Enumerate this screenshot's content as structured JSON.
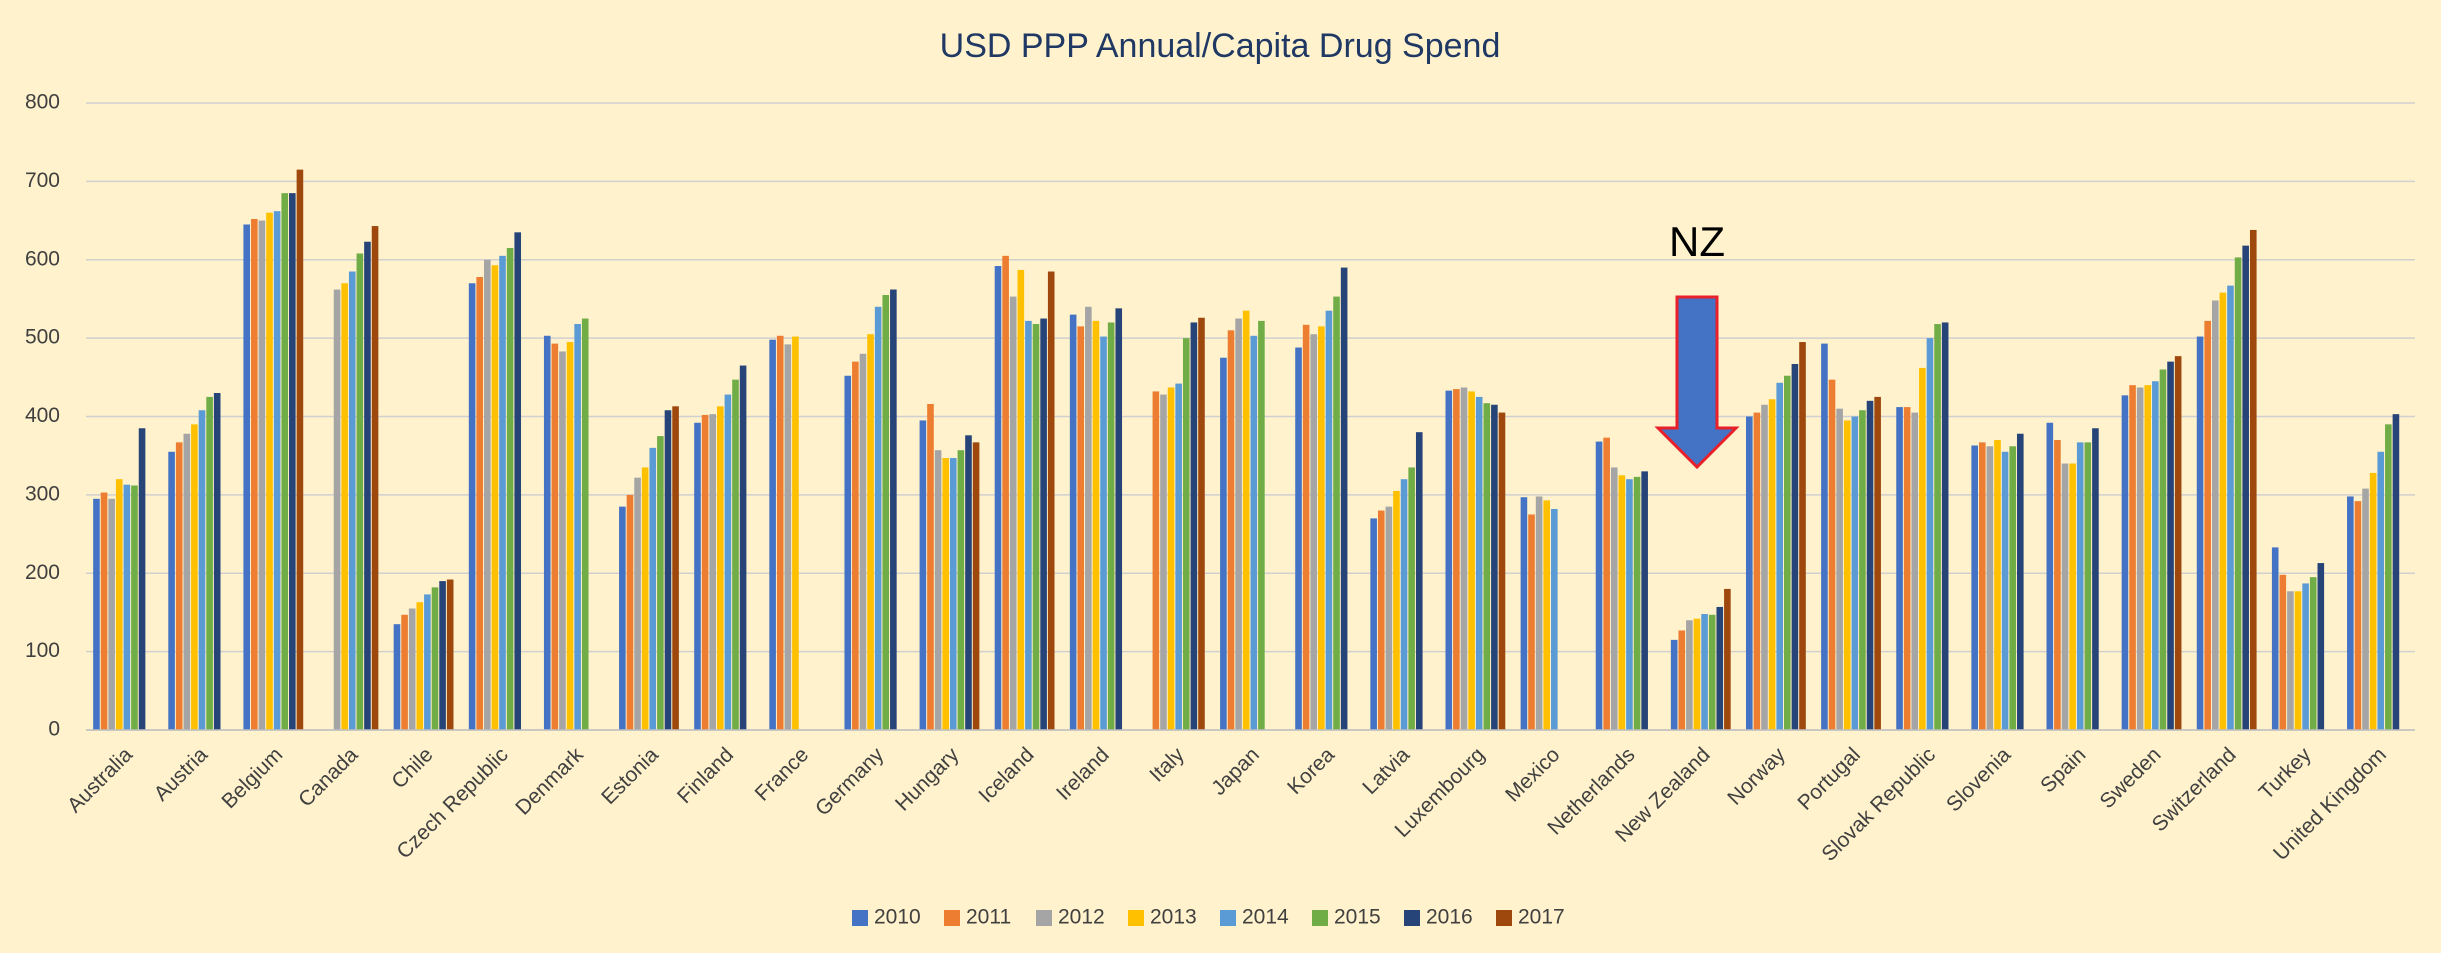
{
  "chart_data": {
    "type": "bar",
    "title": "USD PPP Annual/Capita Drug Spend",
    "categories": [
      "Australia",
      "Austria",
      "Belgium",
      "Canada",
      "Chile",
      "Czech Republic",
      "Denmark",
      "Estonia",
      "Finland",
      "France",
      "Germany",
      "Hungary",
      "Iceland",
      "Ireland",
      "Italy",
      "Japan",
      "Korea",
      "Latvia",
      "Luxembourg",
      "Mexico",
      "Netherlands",
      "New Zealand",
      "Norway",
      "Portugal",
      "Slovak Republic",
      "Slovenia",
      "Spain",
      "Sweden",
      "Switzerland",
      "Turkey",
      "United Kingdom"
    ],
    "series": [
      {
        "name": "2010",
        "color": "#4472c4",
        "values": [
          295,
          355,
          645,
          null,
          135,
          570,
          503,
          285,
          392,
          498,
          452,
          395,
          592,
          530,
          null,
          475,
          488,
          270,
          433,
          297,
          368,
          115,
          400,
          493,
          412,
          363,
          392,
          427,
          502,
          233,
          298
        ]
      },
      {
        "name": "2011",
        "color": "#ed7d31",
        "values": [
          303,
          367,
          652,
          null,
          147,
          578,
          493,
          300,
          402,
          503,
          470,
          416,
          605,
          515,
          432,
          510,
          517,
          280,
          435,
          275,
          373,
          127,
          405,
          447,
          412,
          367,
          370,
          440,
          522,
          198,
          292
        ]
      },
      {
        "name": "2012",
        "color": "#a5a5a5",
        "values": [
          295,
          378,
          650,
          562,
          155,
          600,
          483,
          322,
          403,
          492,
          480,
          357,
          553,
          540,
          428,
          525,
          505,
          285,
          437,
          298,
          335,
          140,
          415,
          410,
          405,
          362,
          340,
          437,
          548,
          177,
          308
        ]
      },
      {
        "name": "2013",
        "color": "#ffc000",
        "values": [
          320,
          390,
          660,
          570,
          163,
          593,
          495,
          335,
          413,
          502,
          505,
          347,
          587,
          522,
          437,
          535,
          515,
          305,
          432,
          293,
          325,
          142,
          422,
          395,
          462,
          370,
          340,
          440,
          558,
          177,
          328
        ]
      },
      {
        "name": "2014",
        "color": "#5b9bd5",
        "values": [
          313,
          408,
          662,
          585,
          173,
          605,
          518,
          360,
          428,
          null,
          540,
          347,
          522,
          502,
          442,
          503,
          535,
          320,
          425,
          282,
          320,
          148,
          443,
          400,
          500,
          355,
          367,
          445,
          567,
          187,
          355
        ]
      },
      {
        "name": "2015",
        "color": "#70ad47",
        "values": [
          312,
          425,
          685,
          608,
          182,
          615,
          525,
          375,
          447,
          null,
          555,
          357,
          518,
          520,
          500,
          522,
          553,
          335,
          417,
          null,
          323,
          147,
          452,
          408,
          518,
          362,
          367,
          460,
          603,
          195,
          390
        ]
      },
      {
        "name": "2016",
        "color": "#264478",
        "values": [
          385,
          430,
          685,
          623,
          190,
          635,
          null,
          408,
          465,
          null,
          562,
          376,
          525,
          538,
          520,
          null,
          590,
          380,
          415,
          null,
          330,
          157,
          467,
          420,
          520,
          378,
          385,
          470,
          618,
          213,
          403
        ]
      },
      {
        "name": "2017",
        "color": "#9e480e",
        "values": [
          null,
          null,
          715,
          643,
          192,
          null,
          null,
          413,
          null,
          null,
          null,
          367,
          585,
          null,
          526,
          null,
          null,
          null,
          405,
          null,
          null,
          180,
          495,
          425,
          null,
          null,
          null,
          477,
          638,
          null,
          null
        ]
      }
    ],
    "annotation": "NZ",
    "ylim": [
      0,
      800
    ],
    "yticks": [
      0,
      100,
      200,
      300,
      400,
      500,
      600,
      700,
      800
    ],
    "grid": true,
    "legend": "bottom"
  }
}
